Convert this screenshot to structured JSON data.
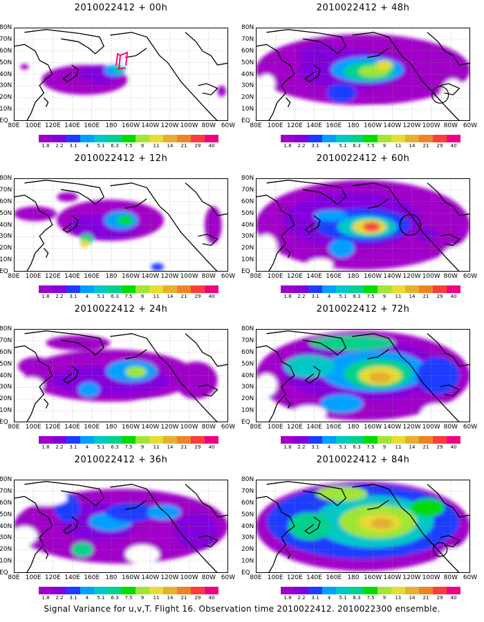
{
  "panels": [
    {
      "title": "2010022412 + 00h"
    },
    {
      "title": "2010022412 + 48h"
    },
    {
      "title": "2010022412 + 12h"
    },
    {
      "title": "2010022412 + 60h"
    },
    {
      "title": "2010022412 + 24h"
    },
    {
      "title": "2010022412 + 72h"
    },
    {
      "title": "2010022412 + 36h"
    },
    {
      "title": "2010022412 + 84h"
    }
  ],
  "lat_labels": [
    "80N",
    "70N",
    "60N",
    "50N",
    "40N",
    "30N",
    "20N",
    "10N",
    "EQ"
  ],
  "lon_labels": [
    "80E",
    "100E",
    "120E",
    "140E",
    "160E",
    "180",
    "160W",
    "140W",
    "120W",
    "100W",
    "80W",
    "60W"
  ],
  "colorbar": {
    "labels": [
      "1.8",
      "2.2",
      "3.1",
      "4",
      "5.1",
      "6.3",
      "7.5",
      "9",
      "11",
      "14",
      "21",
      "29",
      "40"
    ],
    "colors": [
      "#a000c8",
      "#8200dc",
      "#1e3cff",
      "#00a0ff",
      "#00c8c8",
      "#00d28c",
      "#00dc00",
      "#a0e632",
      "#e6dc32",
      "#e6af2d",
      "#f08228",
      "#fa3c3c",
      "#f00082"
    ]
  },
  "footer": "Signal Variance for u,v,T. Flight 16. Observation time 2010022412. 2010022300 ensemble."
}
